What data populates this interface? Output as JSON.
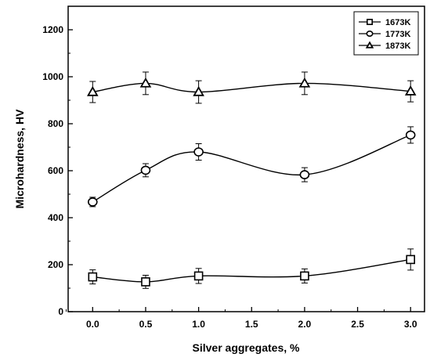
{
  "chart_data": {
    "type": "line",
    "title": "",
    "xlabel": "Silver aggregates, %",
    "ylabel": "Microhardness, HV",
    "xlim": [
      -0.3,
      3.2
    ],
    "ylim": [
      0,
      1300
    ],
    "xticks": [
      "0.0",
      "0.5",
      "1.0",
      "1.5",
      "2.0",
      "2.5",
      "3.0"
    ],
    "yticks": [
      "0",
      "200",
      "400",
      "600",
      "800",
      "1000",
      "1200"
    ],
    "x": [
      0.0,
      0.5,
      1.0,
      2.0,
      3.0
    ],
    "legend_position": "top-right",
    "grid": false,
    "series": [
      {
        "name": "1673K",
        "marker": "square",
        "values": [
          148,
          127,
          152,
          152,
          222
        ],
        "errors": [
          30,
          28,
          32,
          30,
          45
        ]
      },
      {
        "name": "1773K",
        "marker": "circle",
        "values": [
          467,
          602,
          680,
          583,
          752
        ],
        "errors": [
          20,
          28,
          35,
          30,
          35
        ]
      },
      {
        "name": "1873K",
        "marker": "triangle",
        "values": [
          935,
          972,
          935,
          972,
          938
        ],
        "errors": [
          45,
          48,
          48,
          48,
          45
        ]
      }
    ]
  }
}
